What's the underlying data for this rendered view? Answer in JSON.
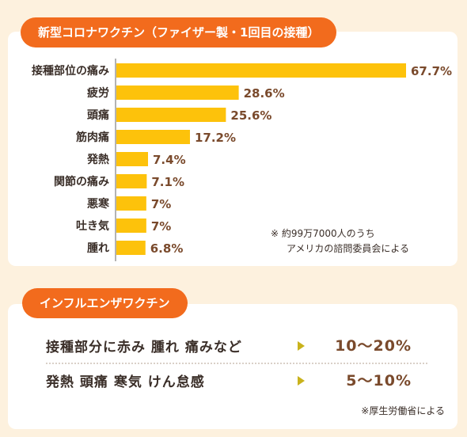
{
  "covid": {
    "title": "新型コロナワクチン（ファイザー製・1回目の接種）",
    "note_line1": "※ 約99万7000人のうち",
    "note_line2": "アメリカの諮問委員会による"
  },
  "flu": {
    "title": "インフルエンザワクチン",
    "rows": [
      {
        "label": "接種部分に赤み 腫れ 痛みなど",
        "value": "10～20%"
      },
      {
        "label": "発熱 頭痛 寒気 けん怠感",
        "value": "5～10%"
      }
    ],
    "note": "※厚生労働省による"
  },
  "colors": {
    "bar": "#fdc20b",
    "accent": "#f26b1d",
    "value_text": "#7a4a2c"
  },
  "chart_data": {
    "type": "bar",
    "orientation": "horizontal",
    "categories": [
      "接種部位の痛み",
      "疲労",
      "頭痛",
      "筋肉痛",
      "発熱",
      "関節の痛み",
      "悪寒",
      "吐き気",
      "腫れ"
    ],
    "values": [
      67.7,
      28.6,
      25.6,
      17.2,
      7.4,
      7.1,
      7,
      7,
      6.8
    ],
    "value_labels": [
      "67.7%",
      "28.6%",
      "25.6%",
      "17.2%",
      "7.4%",
      "7.1%",
      "7%",
      "7%",
      "6.8%"
    ],
    "title": "新型コロナワクチン（ファイザー製・1回目の接種）",
    "xlabel": "",
    "ylabel": "",
    "xlim": [
      0,
      67.7
    ],
    "grid": false
  }
}
